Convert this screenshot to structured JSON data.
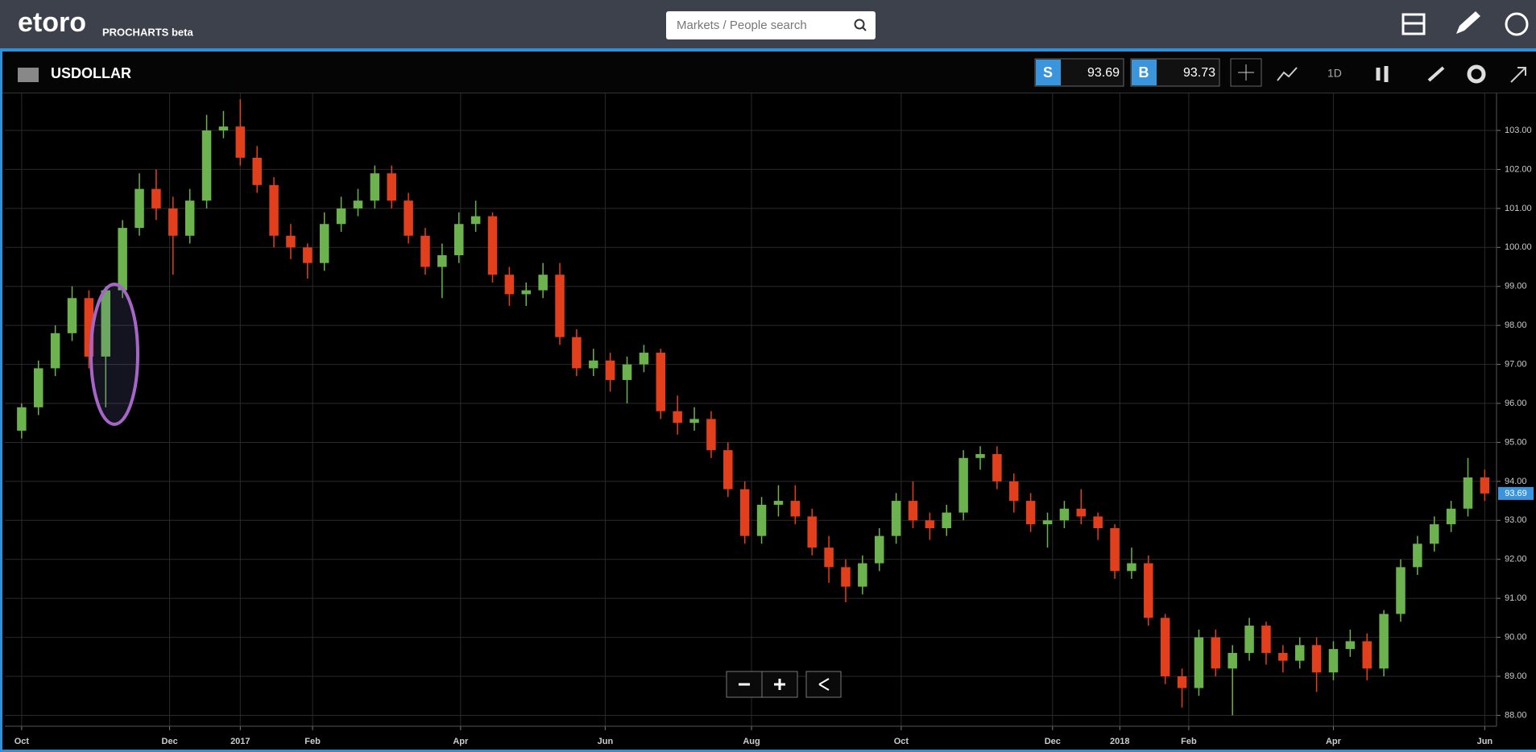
{
  "header": {
    "logo": "etoro",
    "product": "PROCHARTS beta",
    "search_placeholder": "Markets / People search"
  },
  "toolbar": {
    "instrument": "USDOLLAR",
    "sell_label": "S",
    "sell_price": "93.69",
    "buy_label": "B",
    "buy_price": "93.73",
    "timeframe": "1D"
  },
  "chart_data": {
    "type": "candlestick",
    "up_color": "#6cb24f",
    "down_color": "#e2401c",
    "grid": true,
    "open": [
      95.3,
      95.9,
      96.9,
      97.8,
      98.7,
      97.2,
      98.9,
      100.5,
      101.5,
      101.0,
      100.3,
      101.2,
      103.0,
      103.1,
      102.3,
      101.6,
      100.3,
      100.0,
      99.6,
      100.6,
      101.0,
      101.2,
      101.9,
      101.2,
      100.3,
      99.5,
      99.8,
      100.6,
      100.8,
      99.3,
      98.8,
      98.9,
      99.3,
      97.7,
      96.9,
      97.1,
      96.6,
      97.0,
      97.3,
      95.8,
      95.5,
      95.6,
      94.8,
      93.8,
      92.6,
      93.4,
      93.5,
      93.1,
      92.3,
      91.8,
      91.3,
      91.9,
      92.6,
      93.5,
      93.0,
      92.8,
      93.2,
      94.6,
      94.7,
      94.0,
      93.5,
      92.9,
      93.0,
      93.3,
      93.1,
      92.8,
      91.7,
      91.9,
      90.5,
      89.0,
      88.7,
      90.0,
      89.2,
      89.6,
      90.3,
      89.6,
      89.4,
      89.8,
      89.1,
      89.7,
      89.9,
      89.2,
      90.6,
      91.8,
      92.4,
      92.9,
      93.3,
      94.1
    ],
    "high": [
      96.0,
      97.1,
      98.0,
      99.0,
      98.9,
      99.0,
      100.7,
      101.9,
      102.0,
      101.3,
      101.5,
      103.4,
      103.5,
      103.8,
      102.6,
      101.8,
      100.6,
      100.1,
      100.9,
      101.3,
      101.5,
      102.1,
      102.1,
      101.4,
      100.5,
      100.1,
      100.9,
      101.2,
      100.9,
      99.5,
      99.1,
      99.6,
      99.6,
      97.9,
      97.4,
      97.3,
      97.2,
      97.5,
      97.4,
      96.2,
      95.9,
      95.8,
      95.0,
      94.0,
      93.6,
      93.9,
      93.9,
      93.3,
      92.6,
      92.0,
      92.1,
      92.8,
      93.7,
      94.0,
      93.2,
      93.4,
      94.8,
      94.9,
      94.9,
      94.2,
      93.7,
      93.2,
      93.5,
      93.8,
      93.2,
      92.9,
      92.3,
      92.1,
      90.6,
      89.2,
      90.2,
      90.2,
      89.8,
      90.5,
      90.4,
      89.8,
      90.0,
      90.0,
      89.9,
      90.2,
      90.1,
      90.7,
      92.0,
      92.6,
      93.1,
      93.5,
      94.6,
      94.3
    ],
    "low": [
      95.1,
      95.7,
      96.7,
      97.6,
      96.9,
      95.9,
      98.7,
      100.3,
      100.7,
      99.3,
      100.1,
      101.0,
      102.8,
      102.1,
      101.4,
      100.0,
      99.7,
      99.2,
      99.4,
      100.4,
      100.8,
      101.0,
      101.0,
      100.1,
      99.3,
      98.7,
      99.6,
      100.4,
      99.1,
      98.5,
      98.5,
      98.7,
      97.5,
      96.7,
      96.7,
      96.3,
      96.0,
      96.8,
      95.6,
      95.2,
      95.3,
      94.6,
      93.6,
      92.4,
      92.4,
      93.1,
      92.9,
      92.1,
      91.4,
      90.9,
      91.1,
      91.7,
      92.4,
      92.8,
      92.5,
      92.6,
      93.0,
      94.3,
      93.8,
      93.2,
      92.7,
      92.3,
      92.8,
      92.9,
      92.5,
      91.5,
      91.5,
      90.3,
      88.8,
      88.2,
      88.5,
      89.0,
      88.0,
      89.4,
      89.3,
      89.1,
      89.2,
      88.6,
      88.9,
      89.5,
      88.9,
      89.0,
      90.4,
      91.6,
      92.2,
      92.7,
      93.1,
      93.5
    ],
    "close": [
      95.9,
      96.9,
      97.8,
      98.7,
      97.2,
      98.9,
      100.5,
      101.5,
      101.0,
      100.3,
      101.2,
      103.0,
      103.1,
      102.3,
      101.6,
      100.3,
      100.0,
      99.6,
      100.6,
      101.0,
      101.2,
      101.9,
      101.2,
      100.3,
      99.5,
      99.8,
      100.6,
      100.8,
      99.3,
      98.8,
      98.9,
      99.3,
      97.7,
      96.9,
      97.1,
      96.6,
      97.0,
      97.3,
      95.8,
      95.5,
      95.6,
      94.8,
      93.8,
      92.6,
      93.4,
      93.5,
      93.1,
      92.3,
      91.8,
      91.3,
      91.9,
      92.6,
      93.5,
      93.0,
      92.8,
      93.2,
      94.6,
      94.7,
      94.0,
      93.5,
      92.9,
      93.0,
      93.3,
      93.1,
      92.8,
      91.7,
      91.9,
      90.5,
      89.0,
      88.7,
      90.0,
      89.2,
      89.6,
      90.3,
      89.6,
      89.4,
      89.8,
      89.1,
      89.7,
      89.9,
      89.2,
      90.6,
      91.8,
      92.4,
      92.9,
      93.3,
      94.1,
      93.69
    ],
    "last_price": {
      "value": 93.69,
      "label": "93.69"
    },
    "xlim": [
      -1,
      87.7
    ],
    "xticks": [
      {
        "value": 0,
        "label": "Oct"
      },
      {
        "value": 8.8,
        "label": "Dec"
      },
      {
        "value": 13,
        "label": "2017"
      },
      {
        "value": 17.3,
        "label": "Feb"
      },
      {
        "value": 26.1,
        "label": "Apr"
      },
      {
        "value": 34.7,
        "label": "Jun"
      },
      {
        "value": 43.4,
        "label": "Aug"
      },
      {
        "value": 52.3,
        "label": "Oct"
      },
      {
        "value": 61.3,
        "label": "Dec"
      },
      {
        "value": 65.3,
        "label": "2018"
      },
      {
        "value": 69.4,
        "label": "Feb"
      },
      {
        "value": 78,
        "label": "Apr"
      },
      {
        "value": 87,
        "label": "Jun"
      }
    ],
    "ylim": [
      87.72,
      103.95
    ],
    "yticks": [
      {
        "value": 88,
        "label": "88.00"
      },
      {
        "value": 89,
        "label": "89.00"
      },
      {
        "value": 90,
        "label": "90.00"
      },
      {
        "value": 91,
        "label": "91.00"
      },
      {
        "value": 92,
        "label": "92.00"
      },
      {
        "value": 93,
        "label": "93.00"
      },
      {
        "value": 94,
        "label": "94.00"
      },
      {
        "value": 95,
        "label": "95.00"
      },
      {
        "value": 96,
        "label": "96.00"
      },
      {
        "value": 97,
        "label": "97.00"
      },
      {
        "value": 98,
        "label": "98.00"
      },
      {
        "value": 99,
        "label": "99.00"
      },
      {
        "value": 100,
        "label": "100.00"
      },
      {
        "value": 101,
        "label": "101.00"
      },
      {
        "value": 102,
        "label": "102.00"
      },
      {
        "value": 103,
        "label": "103.00"
      }
    ]
  }
}
